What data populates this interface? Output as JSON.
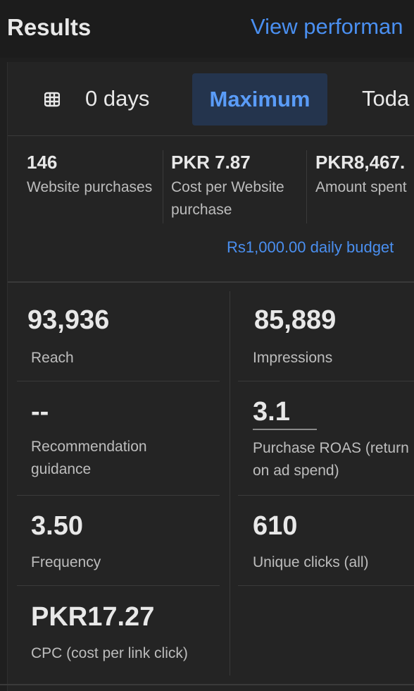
{
  "header": {
    "title": "Results",
    "link": "View performan"
  },
  "tabs": {
    "days": "0 days",
    "maximum": "Maximum",
    "today": "Toda"
  },
  "summary": [
    {
      "value": "146",
      "label_lines": [
        "Website purchases"
      ]
    },
    {
      "value": "PKR 7.87",
      "label_lines": [
        "Cost per Website",
        "purchase"
      ]
    },
    {
      "value": "PKR8,467.",
      "label_lines": [
        "Amount spent"
      ]
    }
  ],
  "budget": "Rs1,000.00 daily budget",
  "metrics": {
    "reach": {
      "value": "93,936",
      "label": "Reach"
    },
    "impressions": {
      "value": "85,889",
      "label": "Impressions"
    },
    "recommendation": {
      "value": "--",
      "label_lines": [
        "Recommendation",
        "guidance"
      ]
    },
    "roas": {
      "value": "3.1",
      "label_lines": [
        "Purchase ROAS (return",
        "on ad spend)"
      ]
    },
    "frequency": {
      "value": "3.50",
      "label": "Frequency"
    },
    "unique_clicks": {
      "value": "610",
      "label": "Unique clicks (all)"
    },
    "cpc": {
      "value": "PKR17.27",
      "label": "CPC (cost per link click)"
    }
  },
  "colors": {
    "accent": "#4a8ff0",
    "tab_active_bg": "#24344d",
    "background": "#242424"
  }
}
